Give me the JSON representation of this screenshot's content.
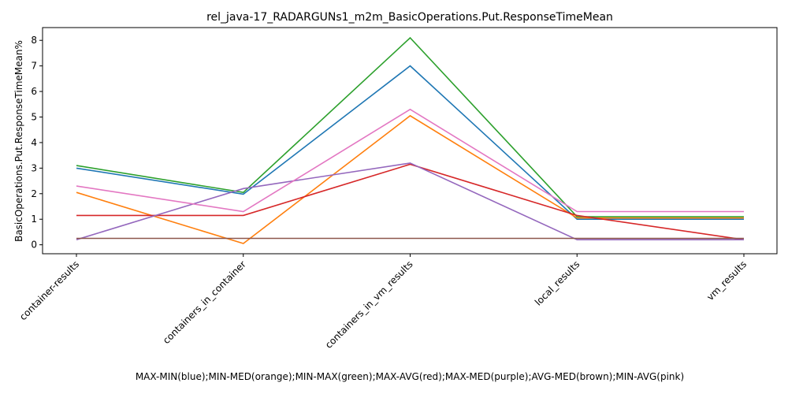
{
  "chart_data": {
    "type": "line",
    "title": "rel_java-17_RADARGUNs1_m2m_BasicOperations.Put.ResponseTimeMean",
    "xlabel": "MAX-MIN(blue);MIN-MED(orange);MIN-MAX(green);MAX-AVG(red);MAX-MED(purple);AVG-MED(brown);MIN-AVG(pink)",
    "ylabel": "BasicOperations.Put.ResponseTimeMean%",
    "categories": [
      "container-results",
      "containers_in_container",
      "containers_in_vm_results",
      "local_results",
      "vm_results"
    ],
    "ylim": [
      -0.35,
      8.5
    ],
    "yticks": [
      0,
      1,
      2,
      3,
      4,
      5,
      6,
      7,
      8
    ],
    "grid": false,
    "series": [
      {
        "color": "#1f77b4",
        "values": [
          3.0,
          1.98,
          7.0,
          1.0,
          1.0
        ]
      },
      {
        "color": "#ff7f0e",
        "values": [
          2.05,
          0.05,
          5.05,
          1.05,
          1.05
        ]
      },
      {
        "color": "#2ca02c",
        "values": [
          3.1,
          2.05,
          8.1,
          1.1,
          1.1
        ]
      },
      {
        "color": "#d62728",
        "values": [
          1.15,
          1.15,
          3.15,
          1.15,
          0.2
        ]
      },
      {
        "color": "#9467bd",
        "values": [
          0.2,
          2.2,
          3.2,
          0.2,
          0.2
        ]
      },
      {
        "color": "#8c564b",
        "values": [
          0.25,
          0.25,
          0.25,
          0.25,
          0.25
        ]
      },
      {
        "color": "#e377c2",
        "values": [
          2.3,
          1.3,
          5.3,
          1.3,
          1.3
        ]
      }
    ]
  }
}
